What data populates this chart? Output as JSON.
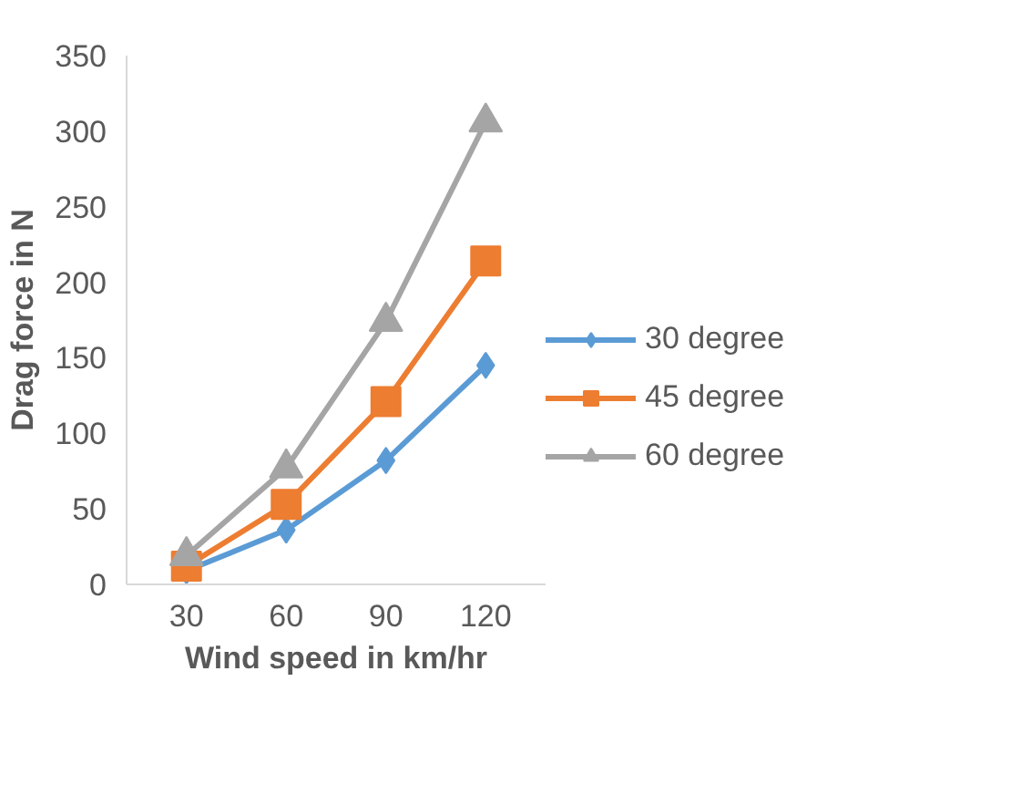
{
  "chart_data": {
    "type": "line",
    "xlabel": "Wind speed in km/hr",
    "ylabel": "Drag force in N",
    "categories": [
      "30",
      "60",
      "90",
      "120"
    ],
    "series": [
      {
        "name": "30 degree",
        "color": "#5b9bd5",
        "marker": "diamond",
        "values": [
          9,
          36,
          82,
          145
        ]
      },
      {
        "name": "45 degree",
        "color": "#ed7d31",
        "marker": "square",
        "values": [
          12,
          53,
          121,
          214
        ]
      },
      {
        "name": "60 degree",
        "color": "#a5a5a5",
        "marker": "triangle",
        "values": [
          19,
          77,
          174,
          306
        ]
      }
    ],
    "ylim": [
      0,
      350
    ],
    "yticks": [
      0,
      50,
      100,
      150,
      200,
      250,
      300,
      350
    ],
    "grid": false,
    "legend": "right"
  }
}
